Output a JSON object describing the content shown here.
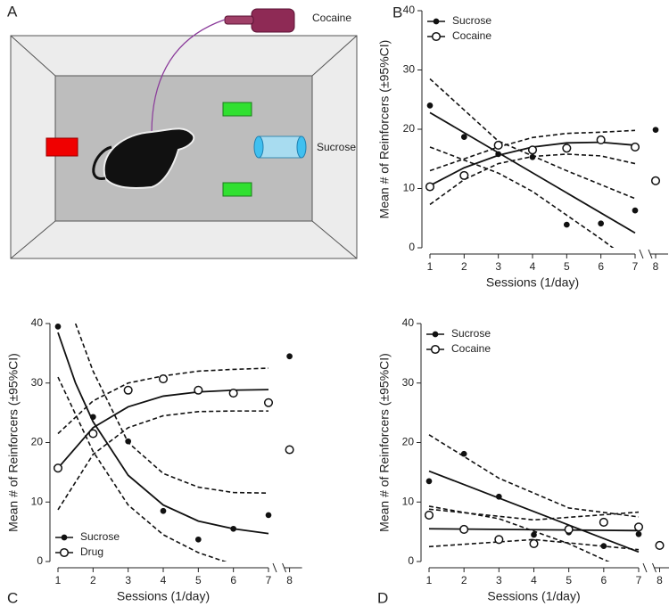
{
  "diagram": {
    "label": "A",
    "syringe_label": "Cocaine",
    "bottle_label": "Sucrose"
  },
  "chart_data": [
    {
      "type": "scatter",
      "label": "B",
      "xlabel": "Sessions (1/day)",
      "ylabel": "Mean # of Reinforcers (±95%CI)",
      "xlim": [
        1,
        8
      ],
      "ylim": [
        0,
        40
      ],
      "xticks": [
        1,
        2,
        3,
        4,
        5,
        6,
        7,
        8
      ],
      "yticks": [
        0,
        10,
        20,
        30,
        40
      ],
      "x_break_after": 7,
      "legend": "upper left",
      "series": [
        {
          "name": "Sucrose",
          "marker": "filled",
          "x": [
            1,
            2,
            3,
            4,
            5,
            6,
            7,
            8
          ],
          "values": [
            24,
            18.7,
            15.8,
            15.3,
            3.9,
            4.1,
            6.3,
            19.9
          ]
        },
        {
          "name": "Cocaine",
          "marker": "open",
          "x": [
            1,
            2,
            3,
            4,
            5,
            6,
            7,
            8
          ],
          "values": [
            10.3,
            12.2,
            17.3,
            16.5,
            16.8,
            18.2,
            17,
            11.3
          ]
        }
      ],
      "fits": [
        {
          "style": "solid",
          "x": [
            1,
            7
          ],
          "values": [
            22.8,
            2.5
          ]
        },
        {
          "style": "dashed",
          "x": [
            1,
            3,
            5,
            7
          ],
          "values": [
            28.5,
            18,
            13,
            8.3
          ]
        },
        {
          "style": "dashed",
          "x": [
            1,
            2,
            3,
            4,
            5,
            6,
            6.7
          ],
          "values": [
            17,
            14.8,
            12.6,
            9.5,
            5.5,
            1.5,
            -1.5
          ]
        },
        {
          "style": "solid",
          "x": [
            1,
            2,
            3,
            4,
            5,
            6,
            7
          ],
          "values": [
            10.5,
            13.5,
            15.6,
            17,
            17.7,
            17.8,
            17.3
          ]
        },
        {
          "style": "dashed",
          "x": [
            1,
            2,
            3,
            4,
            5,
            6,
            7
          ],
          "values": [
            13,
            15,
            17,
            18.6,
            19.3,
            19.5,
            19.8
          ]
        },
        {
          "style": "dashed",
          "x": [
            1,
            2,
            3,
            4,
            5,
            6,
            7
          ],
          "values": [
            7.3,
            11.5,
            14.2,
            15.4,
            15.8,
            15.5,
            14.2
          ]
        }
      ]
    },
    {
      "type": "scatter",
      "label": "C",
      "xlabel": "Sessions (1/day)",
      "ylabel": "Mean # of Reinforcers (±95%CI)",
      "xlim": [
        1,
        8
      ],
      "ylim": [
        0,
        40
      ],
      "xticks": [
        1,
        2,
        3,
        4,
        5,
        6,
        7,
        8
      ],
      "yticks": [
        0,
        10,
        20,
        30,
        40
      ],
      "x_break_after": 7,
      "legend": "lower left",
      "series": [
        {
          "name": "Sucrose",
          "marker": "filled",
          "x": [
            1,
            2,
            3,
            4,
            5,
            6,
            7,
            8
          ],
          "values": [
            39.5,
            24.3,
            20.2,
            8.5,
            3.7,
            5.5,
            7.8,
            34.5
          ]
        },
        {
          "name": "Drug",
          "marker": "open",
          "x": [
            1,
            2,
            3,
            4,
            5,
            6,
            7,
            8
          ],
          "values": [
            15.7,
            21.5,
            28.8,
            30.7,
            28.8,
            28.3,
            26.7,
            18.8
          ]
        }
      ],
      "fits": [
        {
          "style": "solid",
          "x": [
            1,
            1.5,
            2,
            3,
            4,
            5,
            6,
            7
          ],
          "values": [
            38.5,
            30,
            23.5,
            14.5,
            9.5,
            6.8,
            5.5,
            4.7
          ]
        },
        {
          "style": "dashed",
          "x": [
            1.5,
            2,
            3,
            4,
            5,
            6,
            7
          ],
          "values": [
            40,
            32,
            20,
            14.8,
            12.5,
            11.6,
            11.5
          ]
        },
        {
          "style": "dashed",
          "x": [
            1,
            2,
            3,
            4,
            5,
            6,
            7
          ],
          "values": [
            31,
            18.5,
            9.5,
            4.5,
            1.5,
            -0.5,
            -2
          ]
        },
        {
          "style": "solid",
          "x": [
            1,
            2,
            3,
            4,
            5,
            6,
            7
          ],
          "values": [
            15.7,
            22.5,
            26,
            27.8,
            28.5,
            28.8,
            28.9
          ]
        },
        {
          "style": "dashed",
          "x": [
            1,
            2,
            3,
            4,
            5,
            6,
            7
          ],
          "values": [
            21.5,
            27,
            30,
            31.2,
            32,
            32.3,
            32.5
          ]
        },
        {
          "style": "dashed",
          "x": [
            1,
            2,
            3,
            4,
            5,
            6,
            7
          ],
          "values": [
            8.7,
            18,
            22.5,
            24.5,
            25.2,
            25.3,
            25.3
          ]
        }
      ]
    },
    {
      "type": "scatter",
      "label": "D",
      "xlabel": "Sessions (1/day)",
      "ylabel": "Mean # of Reinforcers (±95%CI)",
      "xlim": [
        1,
        8
      ],
      "ylim": [
        0,
        40
      ],
      "xticks": [
        1,
        2,
        3,
        4,
        5,
        6,
        7,
        8
      ],
      "yticks": [
        0,
        10,
        20,
        30,
        40
      ],
      "x_break_after": 7,
      "legend": "upper left",
      "series": [
        {
          "name": "Sucrose",
          "marker": "filled",
          "x": [
            1,
            2,
            3,
            4,
            5,
            6,
            7,
            8
          ],
          "values": [
            13.5,
            18.1,
            10.9,
            4.5,
            4.9,
            2.6,
            4.6,
            2.7
          ]
        },
        {
          "name": "Cocaine",
          "marker": "open",
          "x": [
            1,
            2,
            3,
            4,
            5,
            6,
            7,
            8
          ],
          "values": [
            7.8,
            5.4,
            3.7,
            3.0,
            5.4,
            6.6,
            5.8,
            2.7
          ]
        }
      ],
      "fits": [
        {
          "style": "solid",
          "x": [
            1,
            7
          ],
          "values": [
            15.2,
            1.6
          ]
        },
        {
          "style": "dashed",
          "x": [
            1,
            3,
            5,
            7
          ],
          "values": [
            21.3,
            14,
            9,
            7.5
          ]
        },
        {
          "style": "dashed",
          "x": [
            1,
            3,
            5,
            6.5
          ],
          "values": [
            9.3,
            7.2,
            3,
            -1
          ]
        },
        {
          "style": "solid",
          "x": [
            1,
            7
          ],
          "values": [
            5.5,
            5.2
          ]
        },
        {
          "style": "dashed",
          "x": [
            1,
            4,
            7
          ],
          "values": [
            8.8,
            7,
            8.3
          ]
        },
        {
          "style": "dashed",
          "x": [
            1,
            4,
            7
          ],
          "values": [
            2.5,
            3.7,
            2
          ]
        }
      ]
    }
  ]
}
